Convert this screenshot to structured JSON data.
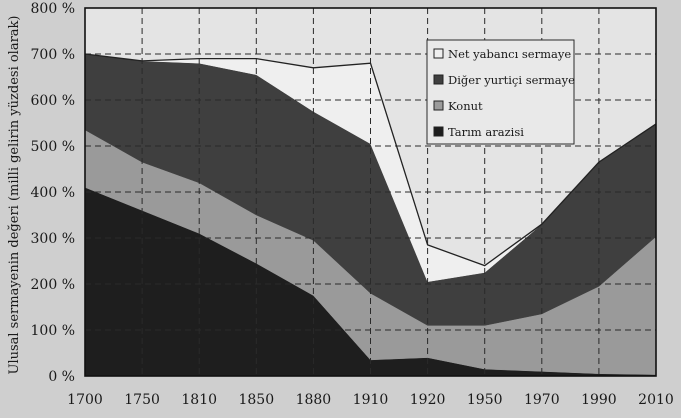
{
  "chart_data": {
    "type": "area",
    "stacked": true,
    "ylabel": "Ulusal sermayenin değeri (milli gelirin yüzdesi olarak)",
    "xlabel": "",
    "x": [
      1700,
      1750,
      1810,
      1850,
      1880,
      1910,
      1920,
      1950,
      1970,
      1990,
      2010
    ],
    "y_ticks": [
      "0 %",
      "100 %",
      "200 %",
      "300 %",
      "400 %",
      "500 %",
      "600 %",
      "700 %",
      "800 %"
    ],
    "ylim": [
      0,
      800
    ],
    "grid": true,
    "legend_position": "top-right",
    "series": [
      {
        "name": "Tarım arazisi",
        "color": "#1e1e1e",
        "values": [
          410,
          360,
          310,
          245,
          175,
          35,
          40,
          15,
          10,
          5,
          3
        ]
      },
      {
        "name": "Konut",
        "color": "#9a9a9a",
        "values": [
          125,
          105,
          110,
          105,
          120,
          145,
          70,
          95,
          125,
          190,
          300
        ]
      },
      {
        "name": "Diğer yurtiçi sermaye",
        "color": "#3f3f3f",
        "values": [
          165,
          220,
          260,
          305,
          280,
          325,
          95,
          115,
          195,
          270,
          245
        ]
      },
      {
        "name": "Net yabancı sermaye",
        "color": "#efefef",
        "values": [
          0,
          0,
          10,
          35,
          95,
          175,
          80,
          15,
          0,
          0,
          0
        ]
      }
    ]
  }
}
